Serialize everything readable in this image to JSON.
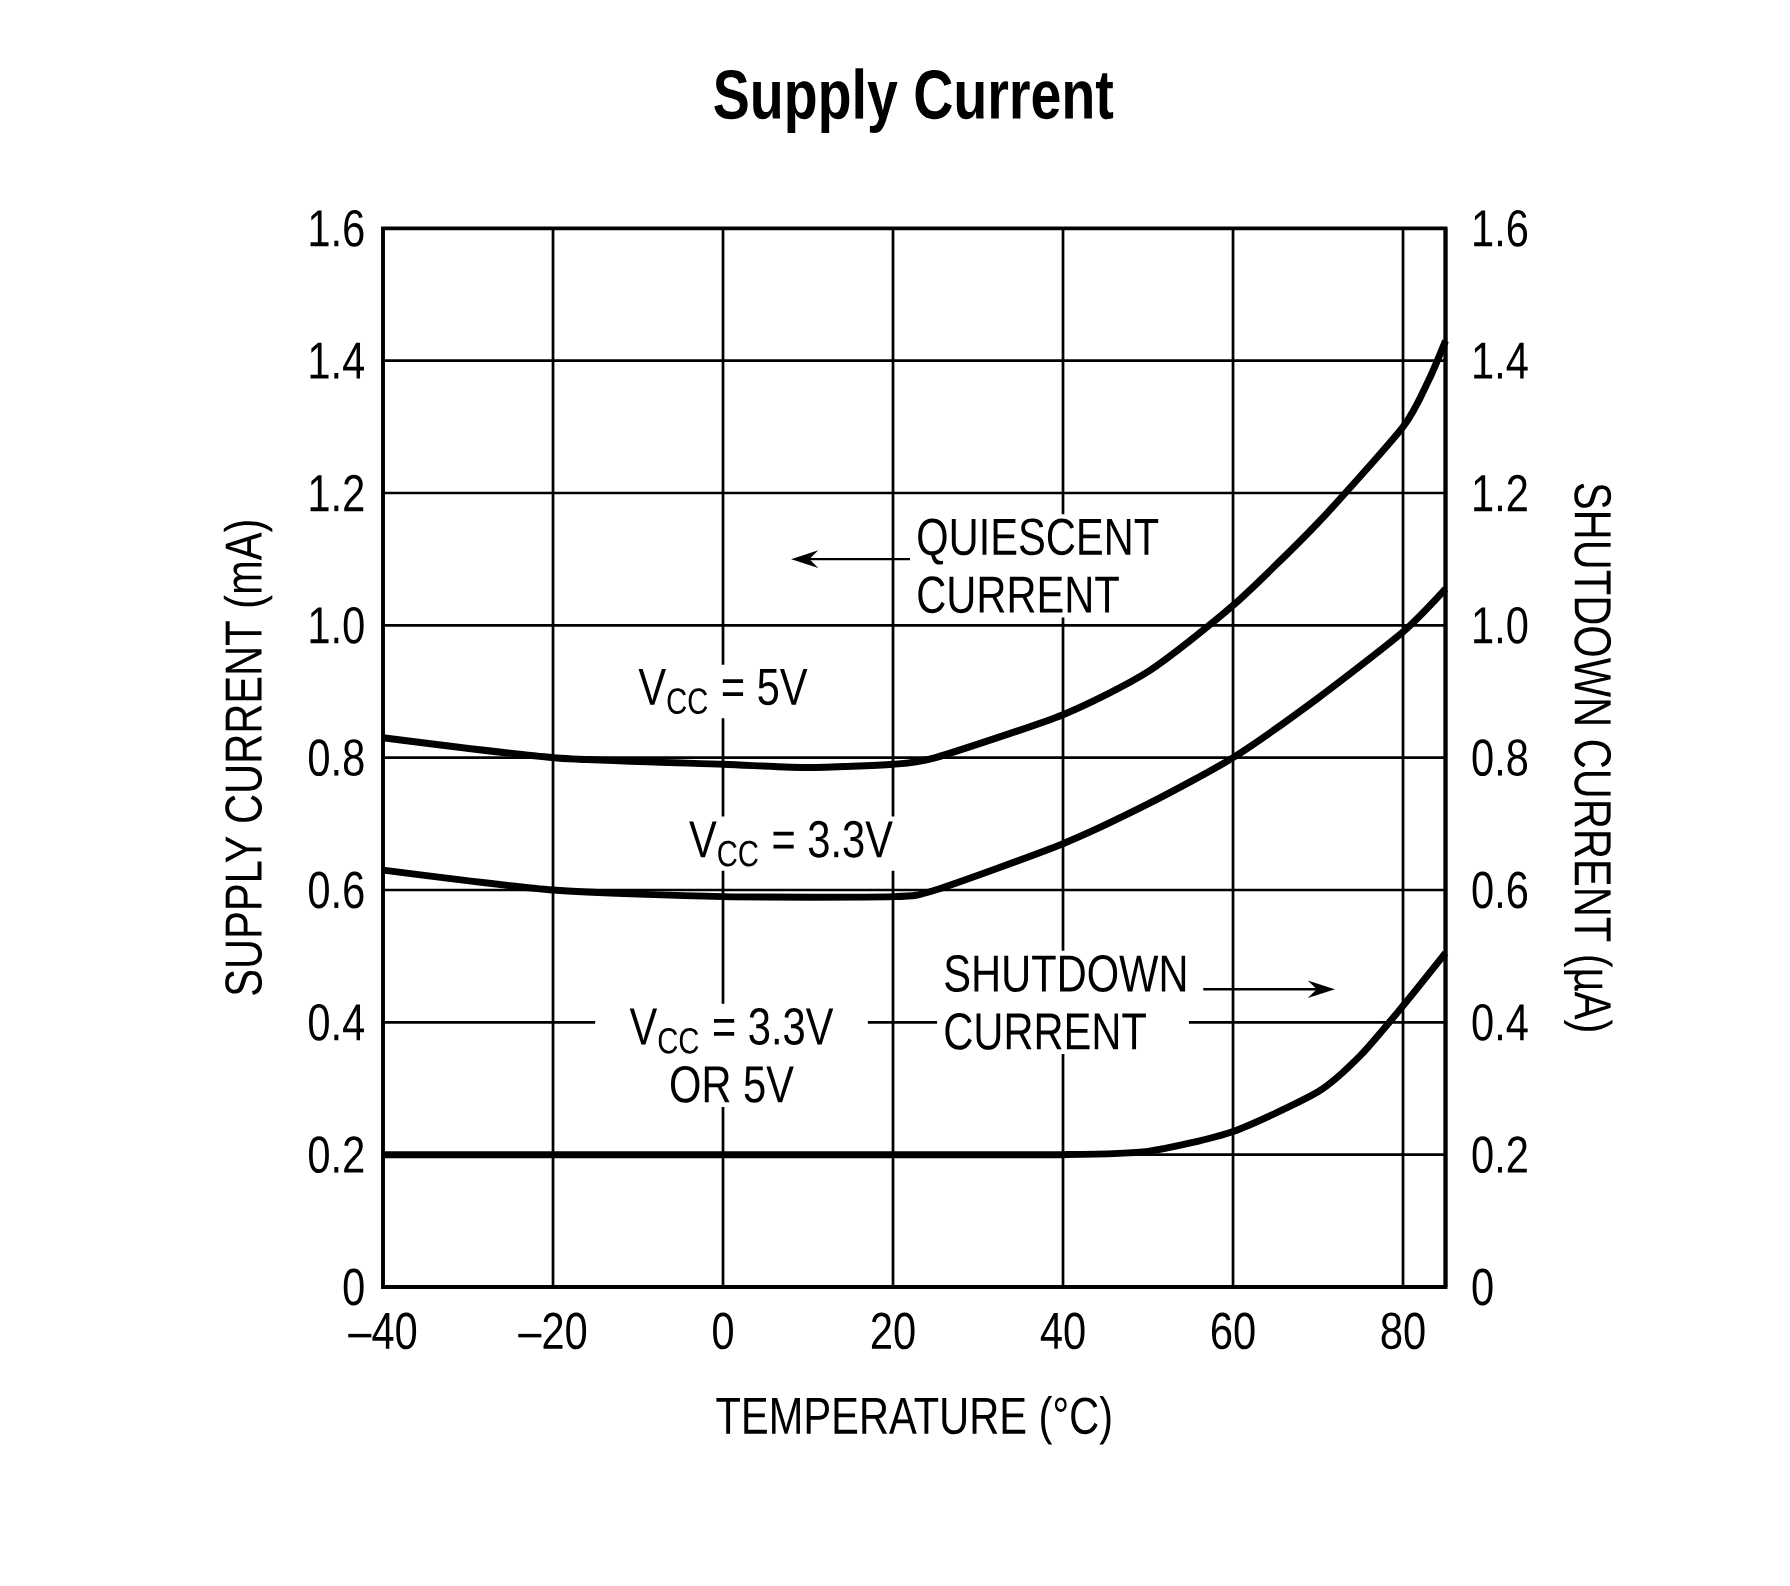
{
  "chart_data": {
    "type": "line",
    "title": "Supply Current",
    "xlabel": "TEMPERATURE (°C)",
    "ylabel": "SUPPLY CURRENT (mA)",
    "y2label": "SHUTDOWN CURRENT (µA)",
    "xlim": [
      -40,
      85
    ],
    "xticks": [
      {
        "value": -40,
        "label": "–40"
      },
      {
        "value": -20,
        "label": "–20"
      },
      {
        "value": 0,
        "label": "0"
      },
      {
        "value": 20,
        "label": "20"
      },
      {
        "value": 40,
        "label": "40"
      },
      {
        "value": 60,
        "label": "60"
      },
      {
        "value": 80,
        "label": "80"
      }
    ],
    "ylim": [
      0,
      1.6
    ],
    "yticks": [
      {
        "value": 0,
        "label": "0"
      },
      {
        "value": 0.2,
        "label": "0.2"
      },
      {
        "value": 0.4,
        "label": "0.4"
      },
      {
        "value": 0.6,
        "label": "0.6"
      },
      {
        "value": 0.8,
        "label": "0.8"
      },
      {
        "value": 1.0,
        "label": "1.0"
      },
      {
        "value": 1.2,
        "label": "1.2"
      },
      {
        "value": 1.4,
        "label": "1.4"
      },
      {
        "value": 1.6,
        "label": "1.6"
      }
    ],
    "y2lim": [
      0,
      1.6
    ],
    "y2ticks": [
      {
        "value": 0,
        "label": "0"
      },
      {
        "value": 0.2,
        "label": "0.2"
      },
      {
        "value": 0.4,
        "label": "0.4"
      },
      {
        "value": 0.6,
        "label": "0.6"
      },
      {
        "value": 0.8,
        "label": "0.8"
      },
      {
        "value": 1.0,
        "label": "1.0"
      },
      {
        "value": 1.2,
        "label": "1.2"
      },
      {
        "value": 1.4,
        "label": "1.4"
      },
      {
        "value": 1.6,
        "label": "1.6"
      }
    ],
    "grid": true,
    "series": [
      {
        "name": "V$_{CC}$ = 5V",
        "color": "#000000",
        "x": [
          -40,
          -20,
          0,
          10,
          20,
          25,
          40,
          50,
          60,
          70,
          80,
          83,
          85
        ],
        "values": [
          0.83,
          0.8,
          0.79,
          0.785,
          0.79,
          0.8,
          0.865,
          0.93,
          1.03,
          1.155,
          1.3,
          1.37,
          1.43
        ]
      },
      {
        "name": "V$_{CC}$ = 3.3V",
        "color": "#000000",
        "x": [
          -40,
          -20,
          0,
          20,
          25,
          40,
          50,
          60,
          70,
          80,
          85
        ],
        "values": [
          0.63,
          0.6,
          0.59,
          0.59,
          0.6,
          0.67,
          0.73,
          0.8,
          0.89,
          0.99,
          1.055
        ]
      },
      {
        "name": "V$_{CC}$ = 3.3V OR 5V",
        "color": "#000000",
        "axis": "y2",
        "x": [
          -40,
          -20,
          0,
          20,
          40,
          50,
          60,
          70,
          75,
          80,
          85
        ],
        "values": [
          0.2,
          0.2,
          0.2,
          0.2,
          0.2,
          0.205,
          0.235,
          0.295,
          0.35,
          0.425,
          0.505
        ]
      }
    ],
    "annotations": [
      "QUIESCENT CURRENT",
      "SHUTDOWN CURRENT"
    ]
  }
}
